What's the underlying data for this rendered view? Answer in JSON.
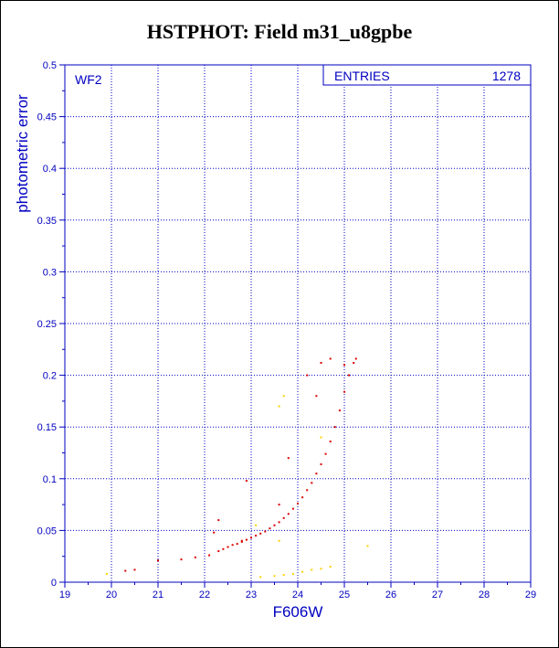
{
  "title": "HSTPHOT: Field m31_u8gpbe",
  "colors": {
    "text": "#0000c0",
    "axis": "#0000c0",
    "grid": "#0000c0",
    "primary": "#dd0000",
    "secondary": "#ffd000",
    "frame": "#000000"
  },
  "chart_data": {
    "type": "scatter",
    "title": "HSTPHOT: Field m31_u8gpbe",
    "xlabel": "F606W",
    "ylabel": "photometric error",
    "xlim": [
      19,
      29
    ],
    "ylim": [
      0,
      0.5
    ],
    "xticks": [
      "19",
      "20",
      "21",
      "22",
      "23",
      "24",
      "25",
      "26",
      "27",
      "28",
      "29"
    ],
    "yticks": [
      "0",
      "0.05",
      "0.1",
      "0.15",
      "0.2",
      "0.25",
      "0.3",
      "0.35",
      "0.4",
      "0.45",
      "0.5"
    ],
    "grid": true,
    "panel_label": "WF2",
    "stats_box": {
      "label": "ENTRIES",
      "value": "1278"
    },
    "series": [
      {
        "color": "red",
        "points": [
          [
            21.0,
            0.021
          ],
          [
            21.5,
            0.022
          ],
          [
            21.8,
            0.024
          ],
          [
            22.1,
            0.026
          ],
          [
            22.3,
            0.03
          ],
          [
            22.4,
            0.032
          ],
          [
            22.5,
            0.034
          ],
          [
            22.6,
            0.036
          ],
          [
            22.7,
            0.037
          ],
          [
            22.8,
            0.039
          ],
          [
            22.9,
            0.041
          ],
          [
            23.0,
            0.043
          ],
          [
            23.1,
            0.045
          ],
          [
            23.2,
            0.047
          ],
          [
            23.3,
            0.049
          ],
          [
            23.4,
            0.052
          ],
          [
            23.5,
            0.055
          ],
          [
            23.6,
            0.058
          ],
          [
            23.7,
            0.062
          ],
          [
            23.8,
            0.066
          ],
          [
            23.9,
            0.071
          ],
          [
            24.0,
            0.076
          ],
          [
            24.1,
            0.082
          ],
          [
            24.2,
            0.089
          ],
          [
            24.3,
            0.096
          ],
          [
            24.4,
            0.105
          ],
          [
            24.5,
            0.114
          ],
          [
            24.6,
            0.124
          ],
          [
            24.7,
            0.136
          ],
          [
            24.8,
            0.15
          ],
          [
            24.9,
            0.166
          ],
          [
            25.0,
            0.184
          ],
          [
            25.1,
            0.2
          ],
          [
            25.2,
            0.212
          ],
          [
            25.25,
            0.216
          ],
          [
            22.3,
            0.06
          ],
          [
            22.8,
            0.04
          ],
          [
            23.8,
            0.12
          ],
          [
            24.2,
            0.2
          ],
          [
            24.4,
            0.18
          ],
          [
            24.5,
            0.212
          ],
          [
            22.9,
            0.098
          ],
          [
            23.6,
            0.075
          ],
          [
            20.5,
            0.012
          ],
          [
            20.3,
            0.011
          ],
          [
            22.2,
            0.048
          ],
          [
            24.7,
            0.216
          ],
          [
            25.0,
            0.21
          ]
        ]
      },
      {
        "color": "yellow",
        "points": [
          [
            19.9,
            0.008
          ],
          [
            23.2,
            0.005
          ],
          [
            23.5,
            0.006
          ],
          [
            23.7,
            0.007
          ],
          [
            23.9,
            0.008
          ],
          [
            24.1,
            0.01
          ],
          [
            24.3,
            0.012
          ],
          [
            24.5,
            0.013
          ],
          [
            24.7,
            0.015
          ],
          [
            23.6,
            0.04
          ],
          [
            23.1,
            0.055
          ],
          [
            23.7,
            0.18
          ],
          [
            23.6,
            0.17
          ],
          [
            25.5,
            0.035
          ],
          [
            24.5,
            0.14
          ]
        ]
      }
    ]
  }
}
